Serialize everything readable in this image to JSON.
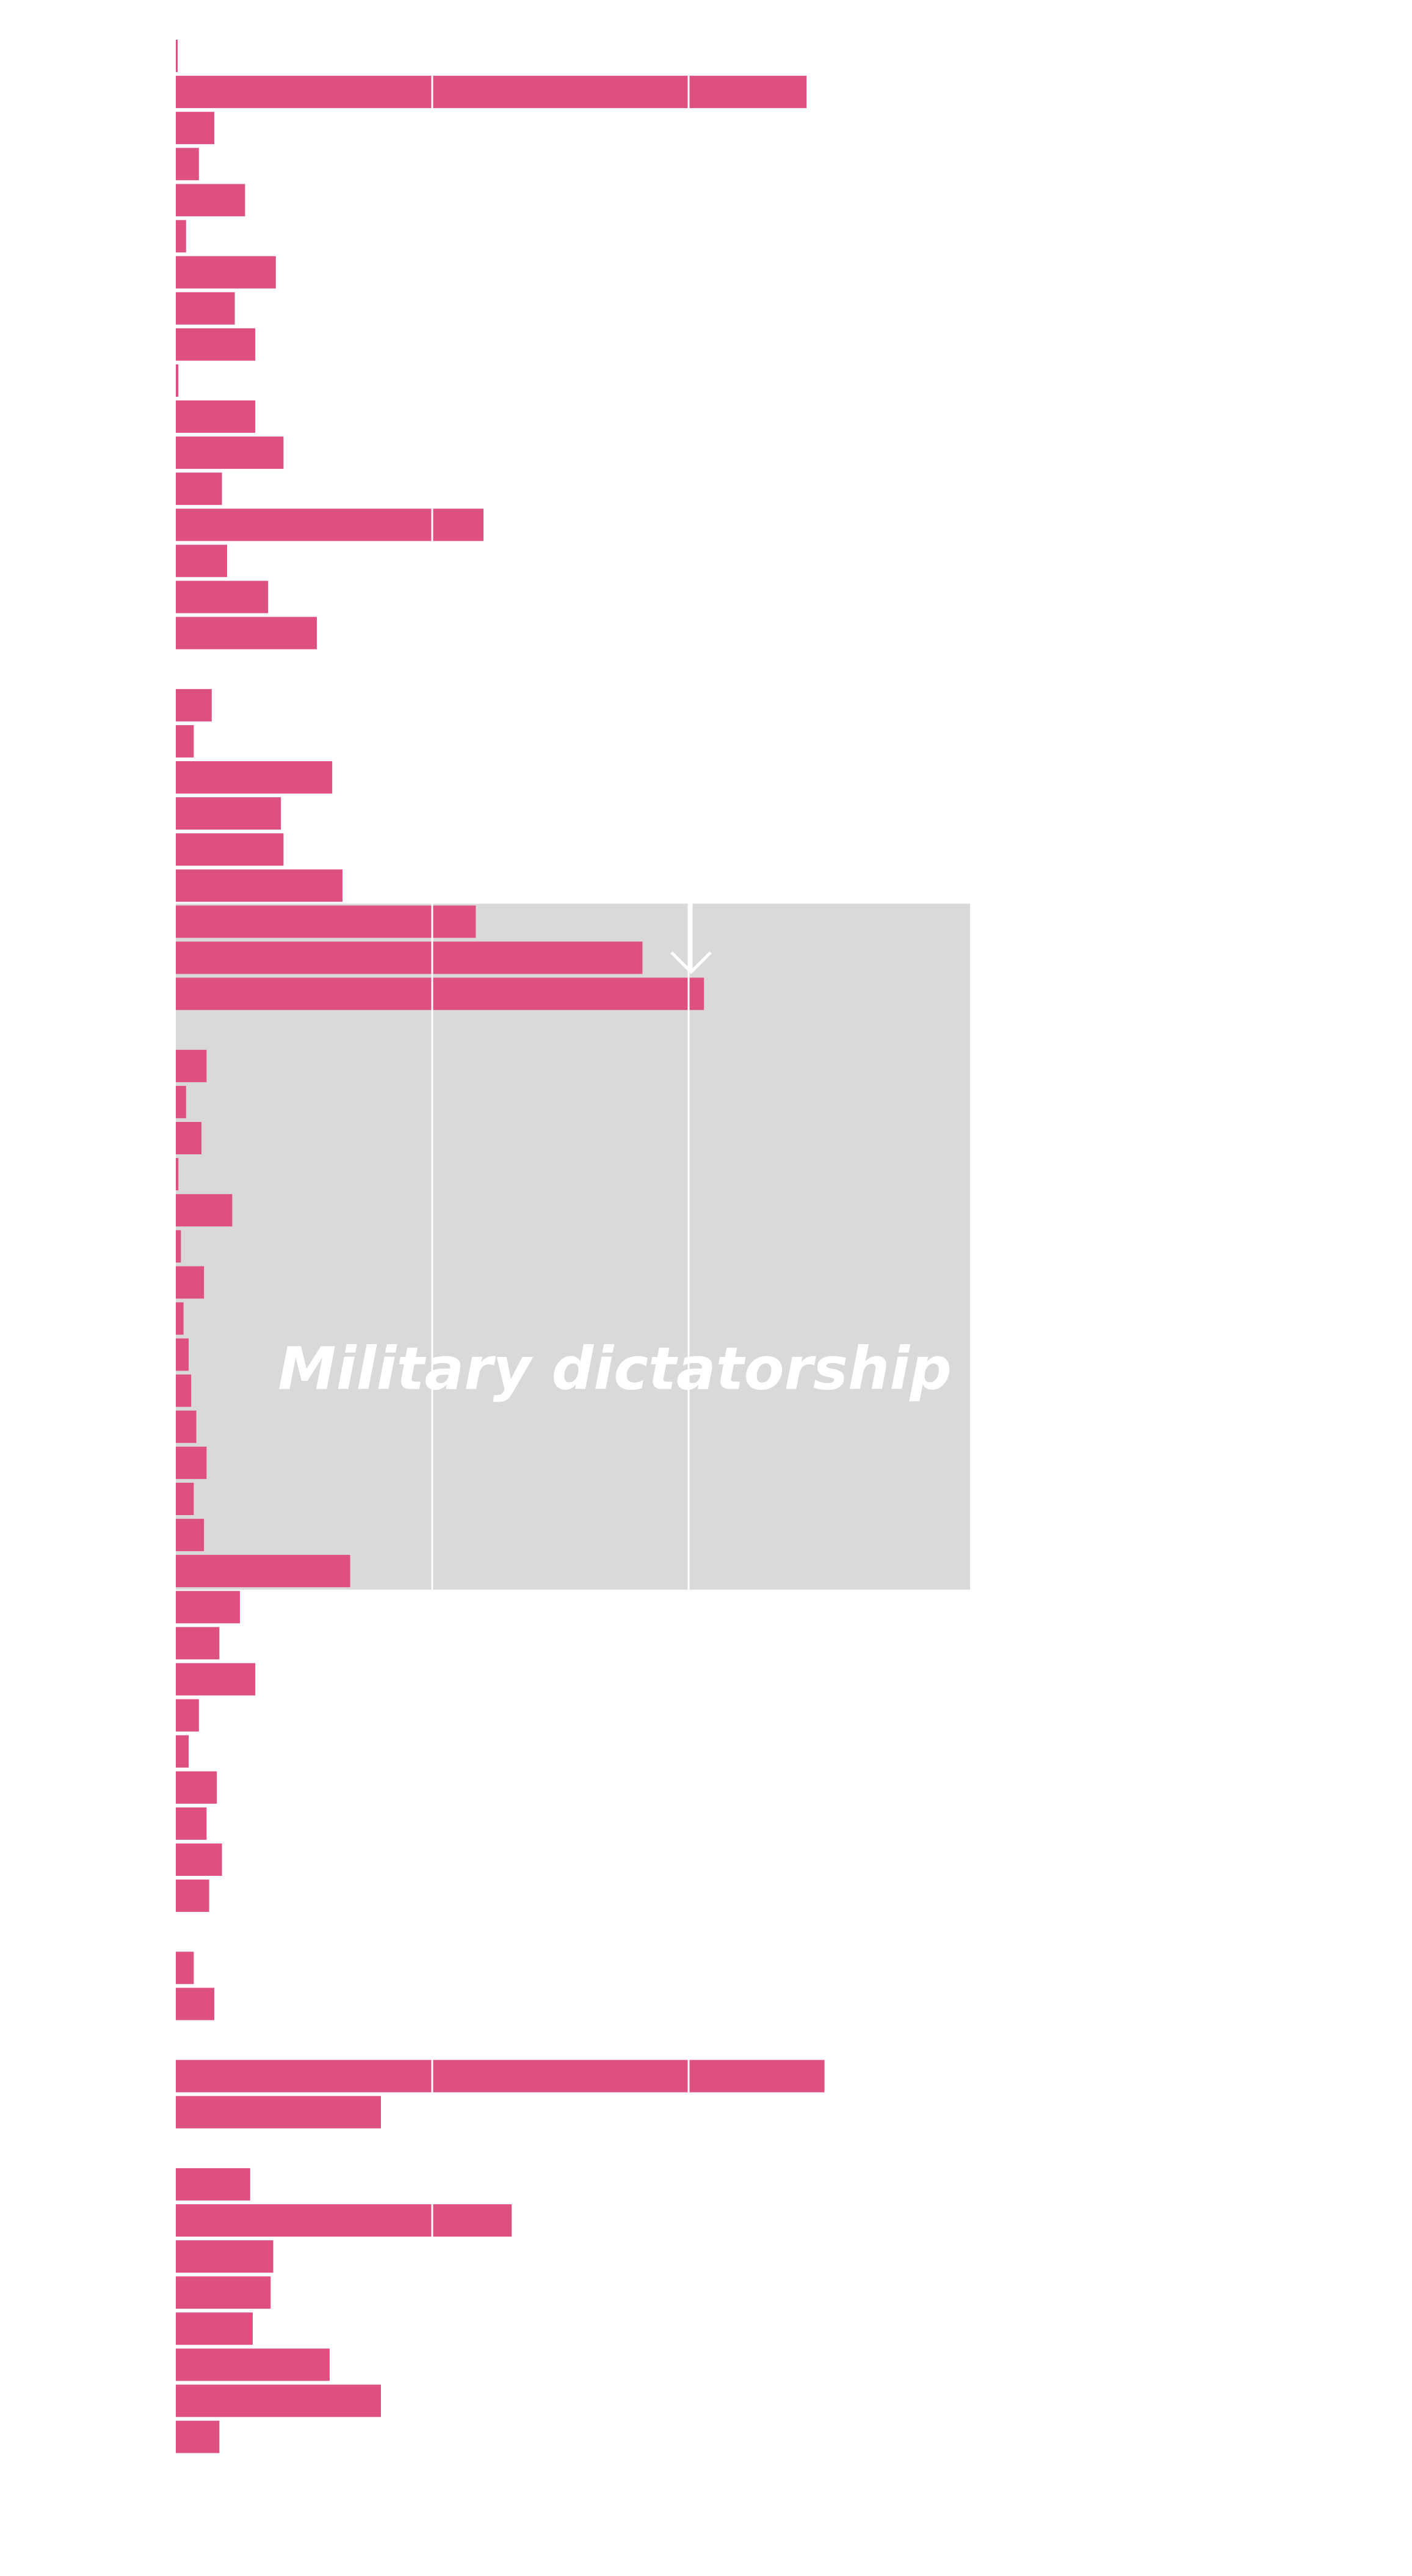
{
  "chart_data": {
    "type": "bar",
    "orientation": "horizontal",
    "title": "",
    "xlabel": "",
    "ylabel": "",
    "tick_labels_visible": false,
    "grid": true,
    "grid_values": [
      100,
      200
    ],
    "xlim": [
      0,
      305
    ],
    "bar_color": "#df5082",
    "highlight_color": "#d9d9d9",
    "grid_color": "#ffffff",
    "annotations": [
      {
        "label": "Military dictatorship",
        "start_index": 23,
        "end_index": 40,
        "arrow_at_value": 200
      }
    ],
    "groups": [
      {
        "values": [
          0.5,
          246,
          15,
          9,
          27,
          4,
          39,
          23,
          31,
          1,
          31,
          42,
          18,
          120,
          20,
          36,
          55
        ]
      },
      {
        "values": [
          14,
          7,
          61,
          41,
          42,
          65,
          117,
          182,
          206
        ]
      },
      {
        "values": [
          12,
          4,
          10,
          1,
          22,
          2,
          11,
          3,
          5,
          6,
          8,
          12,
          7,
          11,
          68,
          25,
          17,
          31,
          9,
          5,
          16,
          12,
          18,
          13
        ]
      },
      {
        "values": [
          7,
          15
        ]
      },
      {
        "values": [
          253,
          80
        ]
      },
      {
        "values": [
          29,
          131,
          38,
          37,
          30,
          60,
          80,
          17
        ]
      }
    ]
  }
}
